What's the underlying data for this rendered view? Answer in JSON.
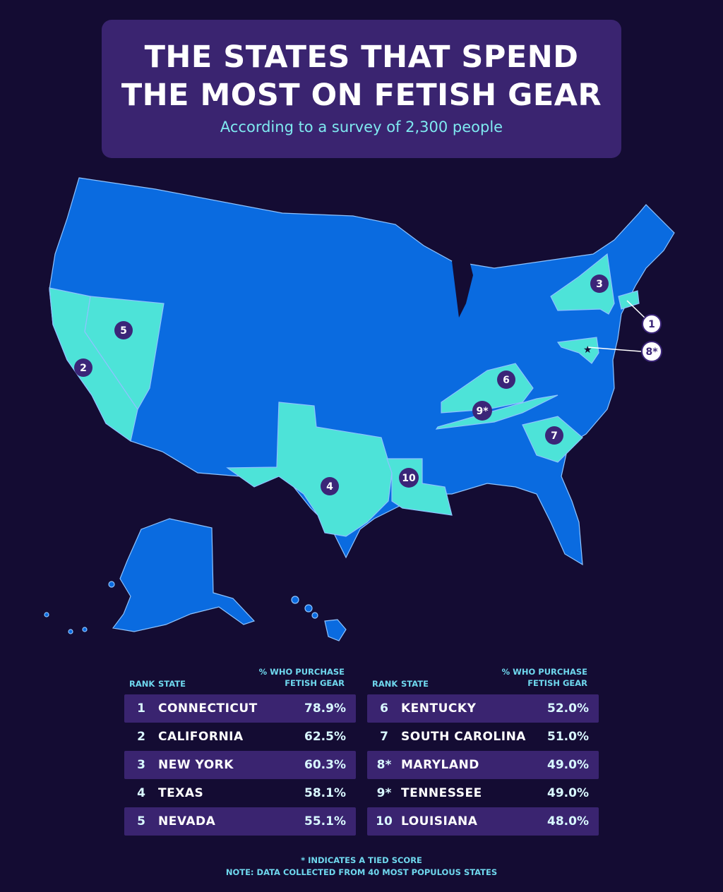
{
  "header": {
    "title_line1": "THE STATES THAT SPEND",
    "title_line2": "THE MOST ON FETISH GEAR",
    "subtitle": "According to a survey of 2,300 people"
  },
  "colors": {
    "background": "#140c33",
    "panel": "#3a2470",
    "state_default": "#0a6be0",
    "state_highlight": "#4de3d8",
    "accent_text": "#7fe9f0"
  },
  "map_labels": [
    "1",
    "2",
    "3",
    "4",
    "5",
    "6",
    "7",
    "8*",
    "9*",
    "10"
  ],
  "table": {
    "col_rank": "RANK",
    "col_state": "STATE",
    "col_pct_line1": "% WHO PURCHASE",
    "col_pct_line2": "FETISH GEAR",
    "rows": [
      {
        "rank": "1",
        "state": "CONNECTICUT",
        "pct": "78.9%"
      },
      {
        "rank": "2",
        "state": "CALIFORNIA",
        "pct": "62.5%"
      },
      {
        "rank": "3",
        "state": "NEW YORK",
        "pct": "60.3%"
      },
      {
        "rank": "4",
        "state": "TEXAS",
        "pct": "58.1%"
      },
      {
        "rank": "5",
        "state": "NEVADA",
        "pct": "55.1%"
      },
      {
        "rank": "6",
        "state": "KENTUCKY",
        "pct": "52.0%"
      },
      {
        "rank": "7",
        "state": "SOUTH CAROLINA",
        "pct": "51.0%"
      },
      {
        "rank": "8*",
        "state": "MARYLAND",
        "pct": "49.0%"
      },
      {
        "rank": "9*",
        "state": "TENNESSEE",
        "pct": "49.0%"
      },
      {
        "rank": "10",
        "state": "LOUISIANA",
        "pct": "48.0%"
      }
    ]
  },
  "notes": {
    "tie": "* INDICATES A TIED SCORE",
    "source": "NOTE: DATA COLLECTED FROM 40 MOST POPULOUS STATES"
  }
}
